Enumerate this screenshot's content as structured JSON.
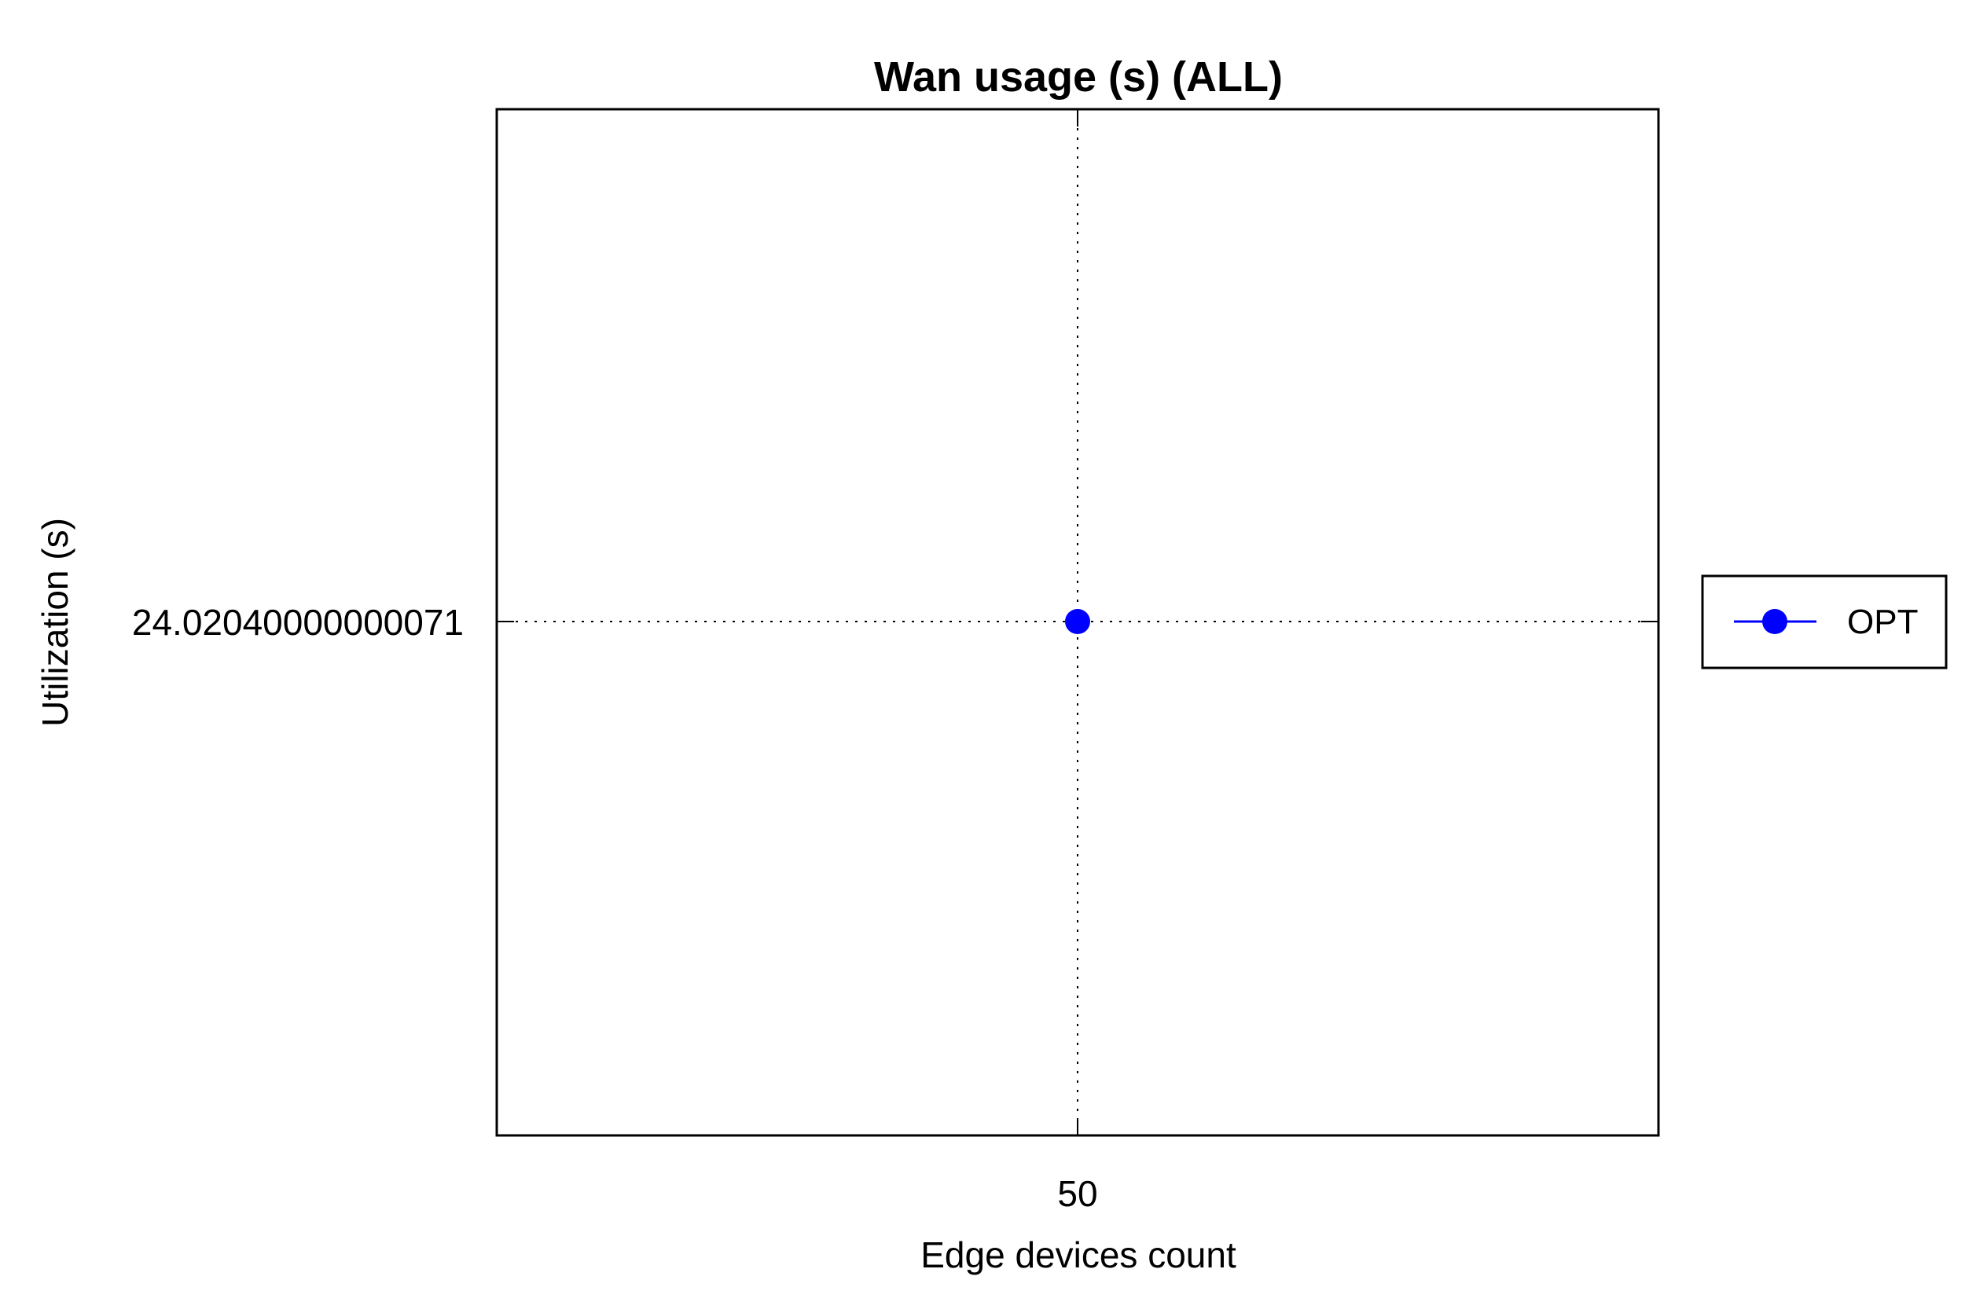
{
  "chart_data": {
    "type": "line",
    "title": "Wan usage (s) (ALL)",
    "xlabel": "Edge devices count",
    "ylabel": "Utilization (s)",
    "x_ticks": [
      "50"
    ],
    "y_ticks": [
      "24.02040000000071"
    ],
    "grid": true,
    "legend_position": "outside-right",
    "series": [
      {
        "name": "OPT",
        "color": "#0000ff",
        "marker": "circle",
        "points": [
          {
            "x": 50,
            "y": 24.02040000000071
          }
        ]
      }
    ]
  }
}
